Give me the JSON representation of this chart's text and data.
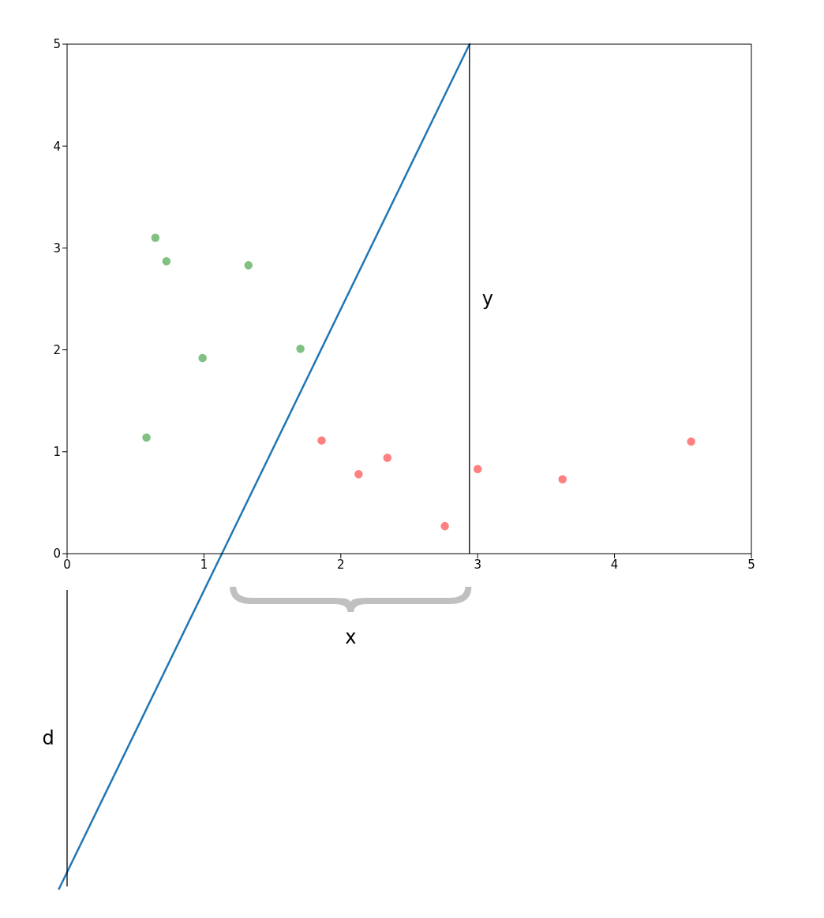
{
  "chart_data": {
    "type": "scatter",
    "xlim": [
      0,
      5
    ],
    "ylim": [
      0,
      5
    ],
    "xticks": [
      0,
      1,
      2,
      3,
      4,
      5
    ],
    "yticks": [
      0,
      1,
      2,
      3,
      4,
      5
    ],
    "series": [
      {
        "color": "#80c080",
        "x": [
          0.645,
          0.726,
          1.325,
          0.99,
          1.705,
          0.58
        ],
        "values": [
          3.1,
          2.87,
          2.83,
          1.92,
          2.01,
          1.14
        ]
      },
      {
        "color": "#ff8080",
        "x": [
          1.86,
          2.13,
          2.34,
          2.76,
          3.0,
          3.62,
          4.56
        ],
        "values": [
          1.11,
          0.78,
          0.94,
          0.27,
          0.83,
          0.73,
          1.1
        ]
      },
      {
        "type": "line",
        "marker": "none",
        "color": "#1f77b4",
        "x": [
          1.13,
          2.94
        ],
        "values": [
          0,
          5
        ]
      }
    ],
    "ref_lines": [
      {
        "axis": "x",
        "value": 2.94,
        "label": "y",
        "color": "#000000"
      }
    ],
    "annotations": [
      "x",
      "d"
    ],
    "marker": "circle"
  }
}
